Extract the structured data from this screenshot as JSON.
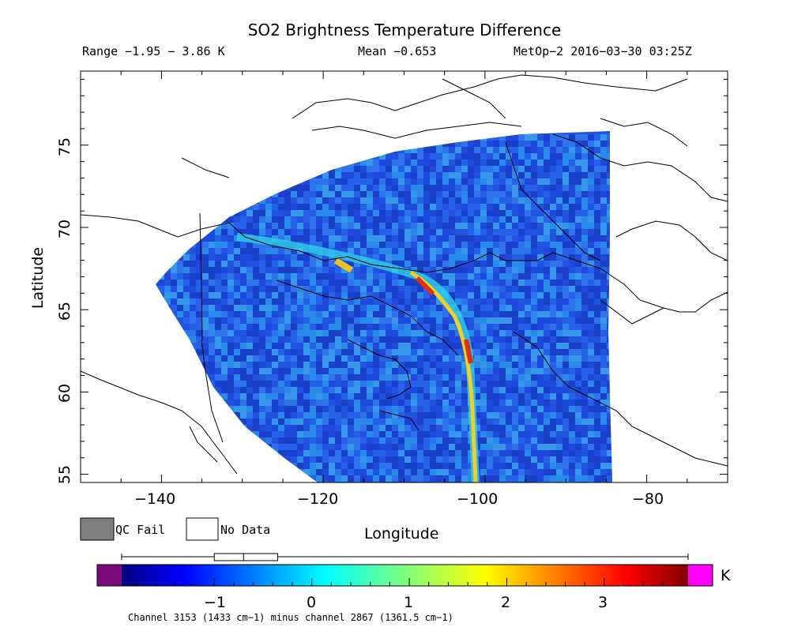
{
  "title": "SO2 Brightness Temperature Difference",
  "header": {
    "range": "Range −1.95 − 3.86 K",
    "mean": "Mean −0.653",
    "satellite_time": "MetOp−2 2016−03−30 03:25Z"
  },
  "axes": {
    "xlabel": "Longitude",
    "ylabel": "Latitude",
    "x_ticks": [
      "−140",
      "−120",
      "−100",
      "−80"
    ],
    "y_ticks": [
      "55",
      "60",
      "65",
      "70",
      "75"
    ],
    "xlim": [
      -150,
      -70
    ],
    "ylim": [
      54.5,
      79.5
    ]
  },
  "legend": {
    "qc_fail": "QC Fail",
    "no_data": "No Data",
    "qc_fail_color": "#7f7f7f",
    "no_data_color": "#ffffff"
  },
  "colorbar": {
    "unit": "K",
    "ticks": [
      "−1",
      "0",
      "1",
      "2",
      "3"
    ],
    "range": [
      -1.95,
      3.86
    ],
    "under_color": "#7b0a7b",
    "over_color": "#ff00ff",
    "boxplot": {
      "whisker_low": -1.95,
      "q1": -1.0,
      "median": -0.7,
      "q3": -0.35,
      "whisker_high": 3.86
    }
  },
  "footnote": "Channel 3153 (1433 cm−1) minus channel 2867 (1361.5 cm−1)"
}
